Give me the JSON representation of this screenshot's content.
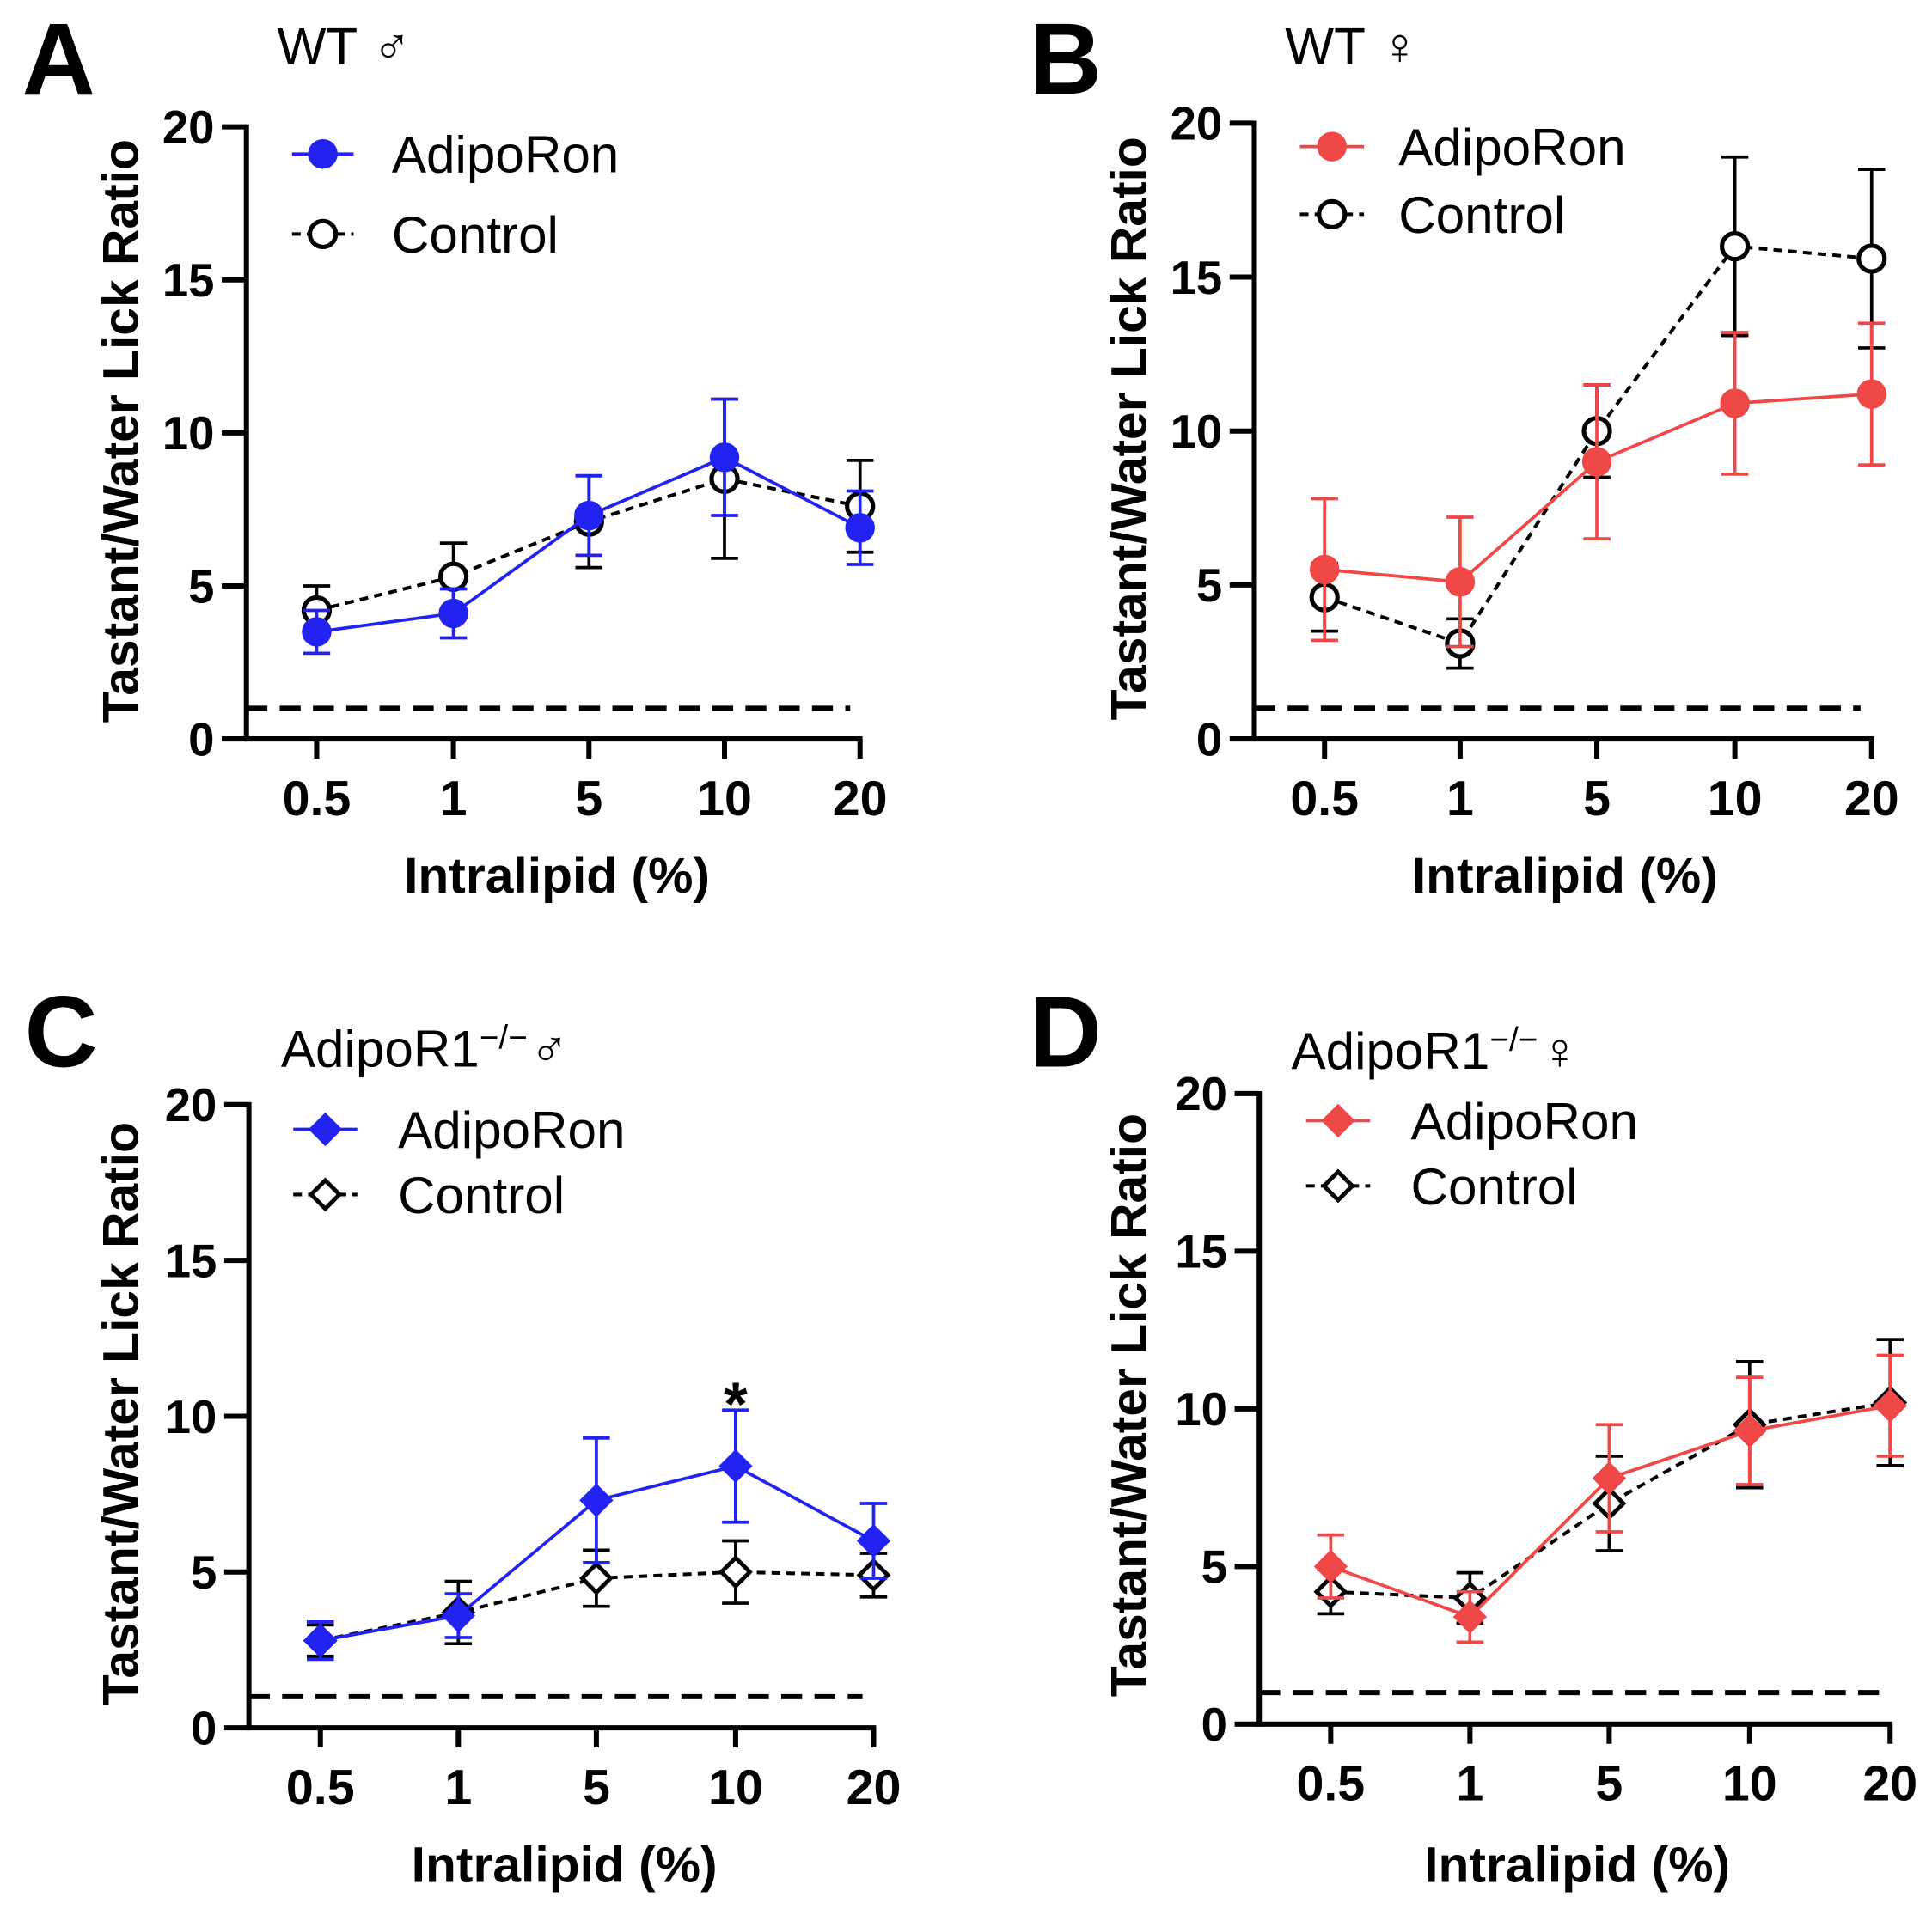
{
  "chart_data": [
    {
      "panel_label": "A",
      "title": {
        "main": "WT",
        "symbol": "♂"
      },
      "type": "line",
      "categories": [
        "0.5",
        "1",
        "5",
        "10",
        "20"
      ],
      "xlabel": "Intralipid (%)",
      "ylabel": "Tastant/Water Lick Ratio",
      "ylim": [
        0,
        20
      ],
      "yticks": [
        0,
        5,
        10,
        15,
        20
      ],
      "grid": false,
      "legend_position": "top-left",
      "reference_line": {
        "y": 1,
        "style": "dashed",
        "color": "#000000"
      },
      "series": [
        {
          "name": "AdipoRon",
          "color": "#2222f2",
          "marker": "filled-circle",
          "line": "solid",
          "values": [
            3.5,
            4.1,
            7.3,
            9.2,
            6.9
          ],
          "error": [
            0.7,
            0.8,
            1.3,
            1.9,
            1.2
          ]
        },
        {
          "name": "Control",
          "color": "#000000",
          "marker": "open-circle",
          "line": "dashed",
          "values": [
            4.2,
            5.3,
            7.1,
            8.5,
            7.6
          ],
          "error": [
            0.8,
            1.1,
            1.5,
            2.6,
            1.5
          ]
        }
      ],
      "annotations": []
    },
    {
      "panel_label": "B",
      "title": {
        "main": "WT",
        "symbol": "♀"
      },
      "type": "line",
      "categories": [
        "0.5",
        "1",
        "5",
        "10",
        "20"
      ],
      "xlabel": "Intralipid (%)",
      "ylabel": "Tastant/Water Lick Ratio",
      "ylim": [
        0,
        20
      ],
      "yticks": [
        0,
        5,
        10,
        15,
        20
      ],
      "grid": false,
      "legend_position": "top-left",
      "reference_line": {
        "y": 1,
        "style": "dashed",
        "color": "#000000"
      },
      "series": [
        {
          "name": "AdipoRon",
          "color": "#f04747",
          "marker": "filled-circle",
          "line": "solid",
          "values": [
            5.5,
            5.1,
            9.0,
            10.9,
            11.2
          ],
          "error": [
            2.3,
            2.1,
            2.5,
            2.3,
            2.3
          ]
        },
        {
          "name": "Control",
          "color": "#000000",
          "marker": "open-circle",
          "line": "dashed",
          "values": [
            4.6,
            3.1,
            10.0,
            16.0,
            15.6
          ],
          "error": [
            1.1,
            0.8,
            1.5,
            2.9,
            2.9
          ]
        }
      ],
      "annotations": []
    },
    {
      "panel_label": "C",
      "title": {
        "main": "AdipoR1",
        "superscript": "−/−",
        "symbol": "♂"
      },
      "type": "line",
      "categories": [
        "0.5",
        "1",
        "5",
        "10",
        "20"
      ],
      "xlabel": "Intralipid (%)",
      "ylabel": "Tastant/Water Lick Ratio",
      "ylim": [
        0,
        20
      ],
      "yticks": [
        0,
        5,
        10,
        15,
        20
      ],
      "grid": false,
      "legend_position": "top-left",
      "reference_line": {
        "y": 1,
        "style": "dashed",
        "color": "#000000"
      },
      "series": [
        {
          "name": "AdipoRon",
          "color": "#2222f2",
          "marker": "filled-diamond",
          "line": "solid",
          "values": [
            2.8,
            3.6,
            7.3,
            8.4,
            6.0
          ],
          "error": [
            0.6,
            0.7,
            2.0,
            1.8,
            1.2
          ]
        },
        {
          "name": "Control",
          "color": "#000000",
          "marker": "open-diamond",
          "line": "dashed",
          "values": [
            2.8,
            3.7,
            4.8,
            5.0,
            4.9
          ],
          "error": [
            0.5,
            1.0,
            0.9,
            1.0,
            0.7
          ]
        }
      ],
      "annotations": [
        {
          "category": "10",
          "text": "*"
        }
      ]
    },
    {
      "panel_label": "D",
      "title": {
        "main": "AdipoR1",
        "superscript": "−/−",
        "symbol": "♀"
      },
      "type": "line",
      "categories": [
        "0.5",
        "1",
        "5",
        "10",
        "20"
      ],
      "xlabel": "Intralipid (%)",
      "ylabel": "Tastant/Water Lick Ratio",
      "ylim": [
        0,
        20
      ],
      "yticks": [
        0,
        5,
        10,
        15,
        20
      ],
      "grid": false,
      "legend_position": "top-left",
      "reference_line": {
        "y": 1,
        "style": "dashed",
        "color": "#000000"
      },
      "series": [
        {
          "name": "AdipoRon",
          "color": "#f04747",
          "marker": "filled-diamond",
          "line": "solid",
          "values": [
            5.0,
            3.4,
            7.8,
            9.3,
            10.1
          ],
          "error": [
            1.0,
            0.8,
            1.7,
            1.7,
            1.6
          ]
        },
        {
          "name": "Control",
          "color": "#000000",
          "marker": "open-diamond",
          "line": "dashed",
          "values": [
            4.2,
            4.0,
            7.0,
            9.5,
            10.2
          ],
          "error": [
            0.7,
            0.8,
            1.5,
            2.0,
            2.0
          ]
        }
      ],
      "annotations": []
    }
  ]
}
